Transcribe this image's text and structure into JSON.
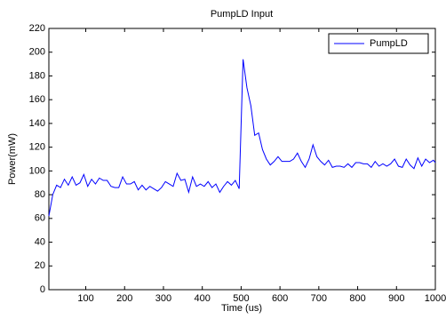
{
  "chart_data": {
    "type": "line",
    "title": "PumpLD Input",
    "x_label": "Time (us)",
    "y_label": "Power(mW)",
    "x": [
      5,
      15,
      25,
      35,
      45,
      55,
      65,
      75,
      85,
      95,
      105,
      115,
      125,
      135,
      145,
      155,
      165,
      175,
      185,
      195,
      205,
      215,
      225,
      235,
      245,
      255,
      265,
      275,
      285,
      295,
      305,
      315,
      325,
      335,
      345,
      355,
      365,
      375,
      385,
      395,
      405,
      415,
      425,
      435,
      445,
      455,
      465,
      475,
      485,
      495,
      505,
      515,
      525,
      535,
      545,
      555,
      565,
      575,
      585,
      595,
      605,
      615,
      625,
      635,
      645,
      655,
      665,
      675,
      685,
      695,
      705,
      715,
      725,
      735,
      745,
      755,
      765,
      775,
      785,
      795,
      805,
      815,
      825,
      835,
      845,
      855,
      865,
      875,
      885,
      895,
      905,
      915,
      925,
      935,
      945,
      955,
      965,
      975,
      985,
      995,
      1000
    ],
    "series": [
      {
        "name": "PumpLD",
        "color": "#0000ff",
        "values": [
          62,
          80,
          88,
          86,
          93,
          88,
          95,
          88,
          90,
          97,
          87,
          93,
          89,
          94,
          92,
          92,
          87,
          86,
          86,
          95,
          89,
          89,
          91,
          84,
          88,
          84,
          87,
          85,
          83,
          86,
          91,
          89,
          87,
          98,
          92,
          93,
          82,
          95,
          87,
          89,
          87,
          91,
          86,
          89,
          82,
          87,
          91,
          88,
          92,
          85,
          194,
          170,
          155,
          130,
          132,
          118,
          110,
          105,
          108,
          112,
          108,
          108,
          108,
          110,
          115,
          108,
          103,
          110,
          122,
          112,
          108,
          105,
          109,
          103,
          104,
          104,
          103,
          106,
          103,
          107,
          107,
          106,
          106,
          103,
          108,
          104,
          106,
          104,
          106,
          110,
          104,
          103,
          110,
          105,
          102,
          111,
          104,
          110,
          107,
          109,
          107
        ]
      }
    ],
    "xlim": [
      5,
      1000
    ],
    "ylim": [
      0,
      220
    ],
    "xticks": [
      100,
      200,
      300,
      400,
      500,
      600,
      700,
      800,
      900,
      1000
    ],
    "yticks": [
      0,
      20,
      40,
      60,
      80,
      100,
      120,
      140,
      160,
      180,
      200,
      220
    ],
    "legend": "upper right"
  }
}
